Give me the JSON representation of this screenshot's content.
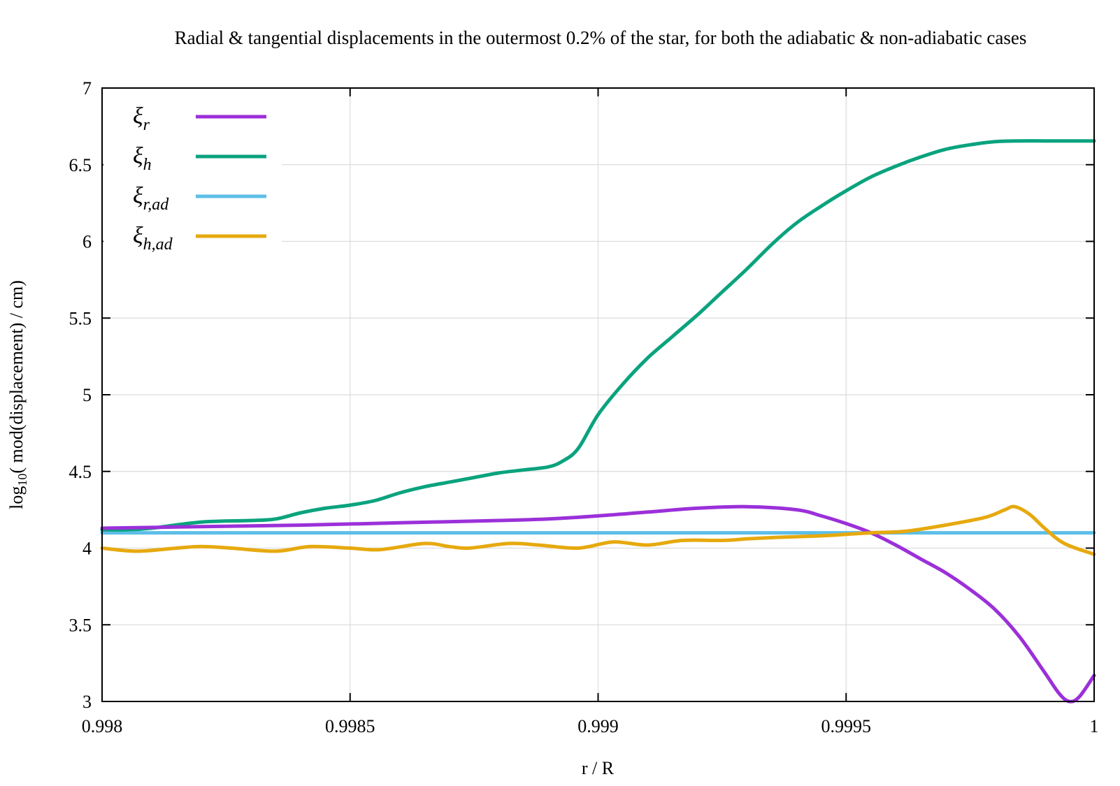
{
  "chart_data": {
    "type": "line",
    "title": "Radial & tangential displacements in the outermost 0.2% of the star, for both the adiabatic & non-adiabatic cases",
    "xlabel": "r / R",
    "ylabel_base": "log",
    "ylabel_sub": "10",
    "ylabel_rest": "( mod(displacement) / cm)",
    "xlim": [
      0.998,
      1.0
    ],
    "ylim": [
      3,
      7
    ],
    "xticks": [
      0.998,
      0.9985,
      0.999,
      0.9995,
      1
    ],
    "xtick_labels": [
      "0.998",
      "0.9985",
      "0.999",
      "0.9995",
      "1"
    ],
    "yticks": [
      3,
      3.5,
      4,
      4.5,
      5,
      5.5,
      6,
      6.5,
      7
    ],
    "ytick_labels": [
      "3",
      "3.5",
      "4",
      "4.5",
      "5",
      "5.5",
      "6",
      "6.5",
      "7"
    ],
    "grid": true,
    "legend_position": "top-left",
    "series": [
      {
        "name": "ξr",
        "label_main": "ξ",
        "label_sub": "r",
        "color": "#9b30d9",
        "x": [
          0.998,
          0.9982,
          0.9984,
          0.9986,
          0.9988,
          0.9989,
          0.999,
          0.9991,
          0.9992,
          0.9993,
          0.9994,
          0.99945,
          0.9995,
          0.99955,
          0.9996,
          0.99965,
          0.9997,
          0.99975,
          0.9998,
          0.99985,
          0.9999,
          0.99993,
          0.99995,
          0.99997,
          1.0
        ],
        "y": [
          4.13,
          4.14,
          4.15,
          4.165,
          4.18,
          4.19,
          4.21,
          4.235,
          4.26,
          4.27,
          4.25,
          4.21,
          4.16,
          4.1,
          4.02,
          3.93,
          3.84,
          3.73,
          3.6,
          3.42,
          3.19,
          3.05,
          3.0,
          3.03,
          3.17
        ]
      },
      {
        "name": "ξh",
        "label_main": "ξ",
        "label_sub": "h",
        "color": "#0aa37e",
        "x": [
          0.998,
          0.99805,
          0.9981,
          0.9982,
          0.9983,
          0.99835,
          0.9984,
          0.99845,
          0.9985,
          0.99855,
          0.9986,
          0.99865,
          0.9987,
          0.99875,
          0.9988,
          0.99885,
          0.9989,
          0.99893,
          0.99896,
          0.999,
          0.99905,
          0.9991,
          0.99915,
          0.9992,
          0.99925,
          0.9993,
          0.99935,
          0.9994,
          0.99945,
          0.9995,
          0.99955,
          0.9996,
          0.99965,
          0.9997,
          0.99975,
          0.9998,
          0.99985,
          0.9999,
          0.99995,
          1.0
        ],
        "y": [
          4.12,
          4.12,
          4.13,
          4.17,
          4.18,
          4.19,
          4.23,
          4.26,
          4.28,
          4.31,
          4.36,
          4.4,
          4.43,
          4.46,
          4.49,
          4.51,
          4.53,
          4.57,
          4.65,
          4.87,
          5.07,
          5.24,
          5.38,
          5.52,
          5.67,
          5.82,
          5.98,
          6.12,
          6.23,
          6.33,
          6.42,
          6.49,
          6.55,
          6.6,
          6.63,
          6.65,
          6.655,
          6.655,
          6.655,
          6.655
        ]
      },
      {
        "name": "ξr,ad",
        "label_main": "ξ",
        "label_sub": "r,ad",
        "color": "#5dbfe8",
        "x": [
          0.998,
          0.999,
          1.0
        ],
        "y": [
          4.1,
          4.1,
          4.1
        ]
      },
      {
        "name": "ξh,ad",
        "label_main": "ξ",
        "label_sub": "h,ad",
        "color": "#e6a90e",
        "x": [
          0.998,
          0.99807,
          0.99815,
          0.9982,
          0.99826,
          0.99835,
          0.99842,
          0.9985,
          0.99856,
          0.99865,
          0.9987,
          0.99874,
          0.99882,
          0.99888,
          0.99896,
          0.99903,
          0.9991,
          0.99917,
          0.99925,
          0.9993,
          0.99936,
          0.99945,
          0.9995,
          0.99955,
          0.99962,
          0.9997,
          0.99978,
          0.99982,
          0.99984,
          0.99987,
          0.9999,
          0.99994,
          1.0
        ],
        "y": [
          4.0,
          3.98,
          4.0,
          4.01,
          4.0,
          3.98,
          4.01,
          4.0,
          3.99,
          4.03,
          4.01,
          4.0,
          4.03,
          4.02,
          4.0,
          4.04,
          4.02,
          4.05,
          4.05,
          4.06,
          4.07,
          4.08,
          4.09,
          4.1,
          4.11,
          4.15,
          4.2,
          4.25,
          4.27,
          4.22,
          4.13,
          4.03,
          3.96
        ]
      }
    ]
  }
}
